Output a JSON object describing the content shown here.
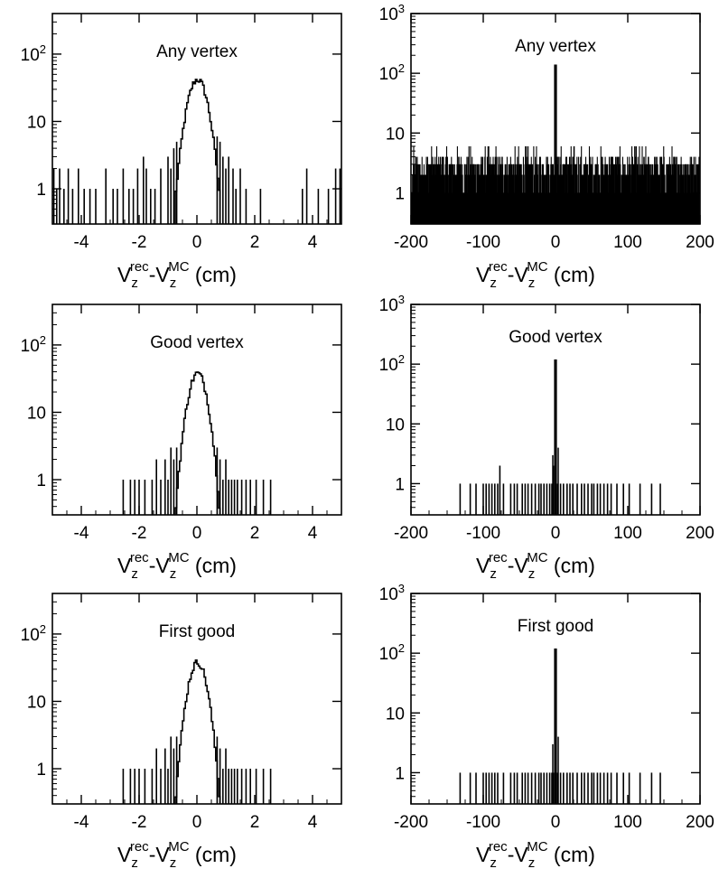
{
  "chart_data": [
    {
      "type": "histogram",
      "title": "Any vertex",
      "scale": "log",
      "xlim": [
        -5,
        5
      ],
      "ylim": [
        0.3,
        400
      ],
      "xticks": [
        -4,
        -2,
        0,
        2,
        4
      ],
      "xtick_labels": [
        "-4",
        "-2",
        "0",
        "2",
        "4"
      ],
      "yticks": [
        1,
        10,
        100
      ],
      "ytick_labels": [
        "1",
        "10",
        "10^2"
      ],
      "xlabel": {
        "base1": "V",
        "sub1": "z",
        "sup1": "rec",
        "dash": "-",
        "base2": "V",
        "sub2": "z",
        "sup2": "MC",
        "unit": " (cm)"
      },
      "background_points": [
        [
          -4.95,
          2
        ],
        [
          -4.85,
          1
        ],
        [
          -4.75,
          2
        ],
        [
          -4.6,
          1
        ],
        [
          -4.45,
          2
        ],
        [
          -4.3,
          1
        ],
        [
          -4.1,
          2
        ],
        [
          -3.9,
          1
        ],
        [
          -3.7,
          1
        ],
        [
          -3.5,
          1
        ],
        [
          -3.15,
          2
        ],
        [
          -2.9,
          1
        ],
        [
          -2.75,
          1
        ],
        [
          -2.55,
          2
        ],
        [
          -2.35,
          1
        ],
        [
          -2.2,
          1
        ],
        [
          -2.05,
          2
        ],
        [
          -1.85,
          3
        ],
        [
          -1.75,
          2
        ],
        [
          -1.6,
          1
        ],
        [
          -1.45,
          1
        ],
        [
          -1.25,
          2
        ],
        [
          -1.0,
          3
        ],
        [
          -0.9,
          2
        ],
        [
          -0.8,
          4
        ],
        [
          -0.7,
          5
        ],
        [
          0.7,
          6
        ],
        [
          0.8,
          5
        ],
        [
          0.9,
          3
        ],
        [
          1.0,
          2
        ],
        [
          1.1,
          3
        ],
        [
          1.25,
          2
        ],
        [
          1.35,
          1
        ],
        [
          1.5,
          2
        ],
        [
          1.7,
          1
        ],
        [
          2.2,
          1
        ],
        [
          3.65,
          1
        ],
        [
          3.8,
          2
        ],
        [
          4.2,
          1
        ],
        [
          4.55,
          1
        ],
        [
          4.8,
          2
        ],
        [
          4.95,
          2
        ]
      ],
      "peak_sigma": 0.27,
      "peak_height": 42
    },
    {
      "type": "histogram",
      "title": "Any vertex",
      "scale": "log",
      "xlim": [
        -200,
        200
      ],
      "ylim": [
        0.3,
        1000
      ],
      "xticks": [
        -200,
        -100,
        0,
        100,
        200
      ],
      "xtick_labels": [
        "-200",
        "-100",
        "0",
        "100",
        "200"
      ],
      "yticks": [
        1,
        10,
        100,
        1000
      ],
      "ytick_labels": [
        "1",
        "10",
        "10^2",
        "10^3"
      ],
      "xlabel": {
        "base1": "V",
        "sub1": "z",
        "sup1": "rec",
        "dash": "-",
        "base2": "V",
        "sub2": "z",
        "sup2": "MC",
        "unit": " (cm)"
      },
      "background_level": 3,
      "background_max": 6,
      "peak_height": 140
    },
    {
      "type": "histogram",
      "title": "Good vertex",
      "scale": "log",
      "xlim": [
        -5,
        5
      ],
      "ylim": [
        0.3,
        400
      ],
      "xticks": [
        -4,
        -2,
        0,
        2,
        4
      ],
      "xtick_labels": [
        "-4",
        "-2",
        "0",
        "2",
        "4"
      ],
      "yticks": [
        1,
        10,
        100
      ],
      "ytick_labels": [
        "1",
        "10",
        "10^2"
      ],
      "xlabel": {
        "base1": "V",
        "sub1": "z",
        "sup1": "rec",
        "dash": "-",
        "base2": "V",
        "sub2": "z",
        "sup2": "MC",
        "unit": " (cm)"
      },
      "background_points": [
        [
          -2.55,
          1
        ],
        [
          -2.3,
          1
        ],
        [
          -2.15,
          1
        ],
        [
          -2.0,
          1
        ],
        [
          -1.8,
          1
        ],
        [
          -1.55,
          1
        ],
        [
          -1.4,
          2
        ],
        [
          -1.25,
          1
        ],
        [
          -1.1,
          2
        ],
        [
          -1.0,
          1
        ],
        [
          -0.9,
          3
        ],
        [
          -0.8,
          2
        ],
        [
          -0.7,
          3
        ],
        [
          0.7,
          3
        ],
        [
          0.8,
          2
        ],
        [
          0.9,
          1
        ],
        [
          1.0,
          2
        ],
        [
          1.1,
          1
        ],
        [
          1.2,
          1
        ],
        [
          1.3,
          1
        ],
        [
          1.4,
          1
        ],
        [
          1.55,
          1
        ],
        [
          1.7,
          1
        ],
        [
          1.85,
          1
        ],
        [
          2.05,
          1
        ],
        [
          2.3,
          1
        ],
        [
          2.55,
          1
        ]
      ],
      "peak_sigma": 0.25,
      "peak_height": 38
    },
    {
      "type": "histogram",
      "title": "Good vertex",
      "scale": "log",
      "xlim": [
        -200,
        200
      ],
      "ylim": [
        0.3,
        1000
      ],
      "xticks": [
        -200,
        -100,
        0,
        100,
        200
      ],
      "xtick_labels": [
        "-200",
        "-100",
        "0",
        "100",
        "200"
      ],
      "yticks": [
        1,
        10,
        100,
        1000
      ],
      "ytick_labels": [
        "1",
        "10",
        "10^2",
        "10^3"
      ],
      "xlabel": {
        "base1": "V",
        "sub1": "z",
        "sup1": "rec",
        "dash": "-",
        "base2": "V",
        "sub2": "z",
        "sup2": "MC",
        "unit": " (cm)"
      },
      "background_points": [
        [
          -132,
          1
        ],
        [
          -118,
          1
        ],
        [
          -110,
          1
        ],
        [
          -100,
          1
        ],
        [
          -96,
          1
        ],
        [
          -92,
          1
        ],
        [
          -88,
          1
        ],
        [
          -84,
          1
        ],
        [
          -80,
          1
        ],
        [
          -77,
          2
        ],
        [
          -72,
          1
        ],
        [
          -62,
          1
        ],
        [
          -57,
          1
        ],
        [
          -53,
          1
        ],
        [
          -46,
          1
        ],
        [
          -42,
          1
        ],
        [
          -38,
          1
        ],
        [
          -33,
          1
        ],
        [
          -28,
          1
        ],
        [
          -23,
          1
        ],
        [
          -20,
          1
        ],
        [
          -16,
          1
        ],
        [
          -12,
          1
        ],
        [
          -8,
          1
        ],
        [
          -5,
          1
        ],
        [
          -3,
          2
        ],
        [
          3,
          1
        ],
        [
          7,
          1
        ],
        [
          11,
          1
        ],
        [
          16,
          1
        ],
        [
          20,
          1
        ],
        [
          24,
          1
        ],
        [
          30,
          1
        ],
        [
          36,
          1
        ],
        [
          40,
          1
        ],
        [
          45,
          1
        ],
        [
          50,
          1
        ],
        [
          53,
          1
        ],
        [
          58,
          1
        ],
        [
          62,
          1
        ],
        [
          67,
          1
        ],
        [
          72,
          1
        ],
        [
          77,
          1
        ],
        [
          85,
          1
        ],
        [
          94,
          1
        ],
        [
          102,
          1
        ],
        [
          117,
          1
        ],
        [
          133,
          1
        ],
        [
          145,
          1
        ]
      ],
      "peak_height": 120
    },
    {
      "type": "histogram",
      "title": "First good",
      "scale": "log",
      "xlim": [
        -5,
        5
      ],
      "ylim": [
        0.3,
        400
      ],
      "xticks": [
        -4,
        -2,
        0,
        2,
        4
      ],
      "xtick_labels": [
        "-4",
        "-2",
        "0",
        "2",
        "4"
      ],
      "yticks": [
        1,
        10,
        100
      ],
      "ytick_labels": [
        "1",
        "10",
        "10^2"
      ],
      "xlabel": {
        "base1": "V",
        "sub1": "z",
        "sup1": "rec",
        "dash": "-",
        "base2": "V",
        "sub2": "z",
        "sup2": "MC",
        "unit": " (cm)"
      },
      "background_points": [
        [
          -2.55,
          1
        ],
        [
          -2.3,
          1
        ],
        [
          -2.15,
          1
        ],
        [
          -2.0,
          1
        ],
        [
          -1.8,
          1
        ],
        [
          -1.55,
          1
        ],
        [
          -1.4,
          2
        ],
        [
          -1.25,
          1
        ],
        [
          -1.1,
          2
        ],
        [
          -1.0,
          1
        ],
        [
          -0.9,
          3
        ],
        [
          -0.8,
          2
        ],
        [
          -0.7,
          3
        ],
        [
          0.7,
          3
        ],
        [
          0.8,
          2
        ],
        [
          0.9,
          1
        ],
        [
          1.0,
          2
        ],
        [
          1.1,
          1
        ],
        [
          1.2,
          1
        ],
        [
          1.3,
          1
        ],
        [
          1.4,
          1
        ],
        [
          1.55,
          1
        ],
        [
          1.7,
          1
        ],
        [
          1.85,
          1
        ],
        [
          2.05,
          1
        ],
        [
          2.3,
          1
        ],
        [
          2.55,
          1
        ]
      ],
      "peak_sigma": 0.25,
      "peak_height": 38
    },
    {
      "type": "histogram",
      "title": "First good",
      "scale": "log",
      "xlim": [
        -200,
        200
      ],
      "ylim": [
        0.3,
        1000
      ],
      "xticks": [
        -200,
        -100,
        0,
        100,
        200
      ],
      "xtick_labels": [
        "-200",
        "-100",
        "0",
        "100",
        "200"
      ],
      "yticks": [
        1,
        10,
        100,
        1000
      ],
      "ytick_labels": [
        "1",
        "10",
        "10^2",
        "10^3"
      ],
      "xlabel": {
        "base1": "V",
        "sub1": "z",
        "sup1": "rec",
        "dash": "-",
        "base2": "V",
        "sub2": "z",
        "sup2": "MC",
        "unit": " (cm)"
      },
      "background_points": [
        [
          -132,
          1
        ],
        [
          -118,
          1
        ],
        [
          -110,
          1
        ],
        [
          -100,
          1
        ],
        [
          -96,
          1
        ],
        [
          -92,
          1
        ],
        [
          -88,
          1
        ],
        [
          -84,
          1
        ],
        [
          -80,
          1
        ],
        [
          -72,
          1
        ],
        [
          -62,
          1
        ],
        [
          -57,
          1
        ],
        [
          -53,
          1
        ],
        [
          -46,
          1
        ],
        [
          -42,
          1
        ],
        [
          -38,
          1
        ],
        [
          -33,
          1
        ],
        [
          -28,
          1
        ],
        [
          -23,
          1
        ],
        [
          -20,
          1
        ],
        [
          -16,
          1
        ],
        [
          -12,
          1
        ],
        [
          -8,
          1
        ],
        [
          -5,
          1
        ],
        [
          -3,
          1
        ],
        [
          3,
          1
        ],
        [
          7,
          1
        ],
        [
          11,
          1
        ],
        [
          16,
          1
        ],
        [
          20,
          1
        ],
        [
          24,
          1
        ],
        [
          30,
          1
        ],
        [
          36,
          1
        ],
        [
          40,
          1
        ],
        [
          45,
          1
        ],
        [
          50,
          1
        ],
        [
          53,
          1
        ],
        [
          58,
          1
        ],
        [
          62,
          1
        ],
        [
          67,
          1
        ],
        [
          72,
          1
        ],
        [
          77,
          1
        ],
        [
          85,
          1
        ],
        [
          94,
          1
        ],
        [
          102,
          1
        ],
        [
          117,
          1
        ],
        [
          133,
          1
        ],
        [
          145,
          1
        ]
      ],
      "peak_height": 120
    }
  ]
}
